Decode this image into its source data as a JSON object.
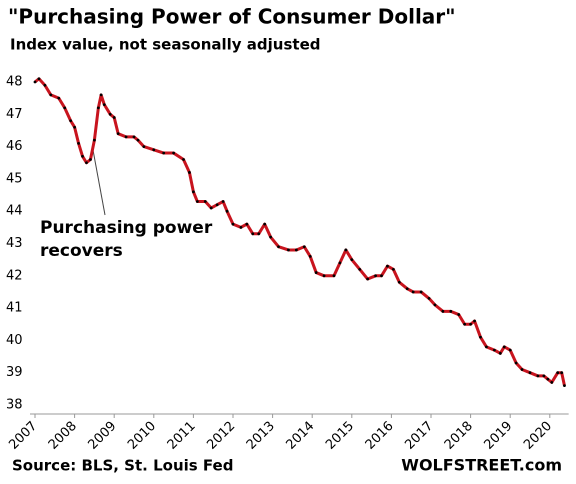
{
  "chart_data": {
    "type": "line",
    "title": "\"Purchasing Power of Consumer Dollar\"",
    "subtitle": "Index value, not seasonally adjusted",
    "annotation": [
      "Purchasing power",
      "recovers"
    ],
    "source": "Source: BLS, St. Louis Fed",
    "brand": "WOLFSTREET.com",
    "line_color": "#c8141e",
    "marker_color": "#000000",
    "annotation_color": "#c8141e",
    "xlim": [
      2007,
      2020.4
    ],
    "ylim": [
      38,
      48
    ],
    "xticks": [
      2007,
      2008,
      2009,
      2010,
      2011,
      2012,
      2013,
      2014,
      2015,
      2016,
      2017,
      2018,
      2019,
      2020
    ],
    "yticks": [
      38,
      39,
      40,
      41,
      42,
      43,
      44,
      45,
      46,
      47,
      48
    ],
    "x": [
      2007.0,
      2007.1,
      2007.25,
      2007.4,
      2007.6,
      2007.75,
      2007.9,
      2008.0,
      2008.1,
      2008.2,
      2008.3,
      2008.4,
      2008.5,
      2008.6,
      2008.67,
      2008.75,
      2008.9,
      2009.0,
      2009.1,
      2009.3,
      2009.5,
      2009.6,
      2009.75,
      2010.0,
      2010.25,
      2010.5,
      2010.75,
      2010.9,
      2011.0,
      2011.1,
      2011.3,
      2011.45,
      2011.6,
      2011.75,
      2011.85,
      2012.0,
      2012.2,
      2012.35,
      2012.5,
      2012.65,
      2012.8,
      2012.95,
      2013.15,
      2013.4,
      2013.6,
      2013.8,
      2013.95,
      2014.1,
      2014.3,
      2014.55,
      2014.7,
      2014.85,
      2015.0,
      2015.2,
      2015.4,
      2015.6,
      2015.75,
      2015.9,
      2016.05,
      2016.2,
      2016.4,
      2016.55,
      2016.75,
      2016.95,
      2017.1,
      2017.3,
      2017.5,
      2017.7,
      2017.85,
      2018.0,
      2018.1,
      2018.25,
      2018.4,
      2018.6,
      2018.75,
      2018.85,
      2019.0,
      2019.15,
      2019.3,
      2019.5,
      2019.7,
      2019.85,
      2019.95,
      2020.05,
      2020.2,
      2020.3,
      2020.37
    ],
    "series": [
      {
        "name": "Purchasing power",
        "values": [
          48.0,
          48.1,
          47.9,
          47.6,
          47.5,
          47.2,
          46.8,
          46.6,
          46.1,
          45.7,
          45.5,
          45.6,
          46.2,
          47.2,
          47.6,
          47.3,
          47.0,
          46.9,
          46.4,
          46.3,
          46.3,
          46.2,
          46.0,
          45.9,
          45.8,
          45.8,
          45.6,
          45.2,
          44.6,
          44.3,
          44.3,
          44.1,
          44.2,
          44.3,
          44.0,
          43.6,
          43.5,
          43.6,
          43.3,
          43.3,
          43.6,
          43.2,
          42.9,
          42.8,
          42.8,
          42.9,
          42.6,
          42.1,
          42.0,
          42.0,
          42.4,
          42.8,
          42.5,
          42.2,
          41.9,
          42.0,
          42.0,
          42.3,
          42.2,
          41.8,
          41.6,
          41.5,
          41.5,
          41.3,
          41.1,
          40.9,
          40.9,
          40.8,
          40.5,
          40.5,
          40.6,
          40.1,
          39.8,
          39.7,
          39.6,
          39.8,
          39.7,
          39.3,
          39.1,
          39.0,
          38.9,
          38.9,
          38.8,
          38.7,
          39.0,
          39.0,
          38.6
        ]
      }
    ]
  }
}
